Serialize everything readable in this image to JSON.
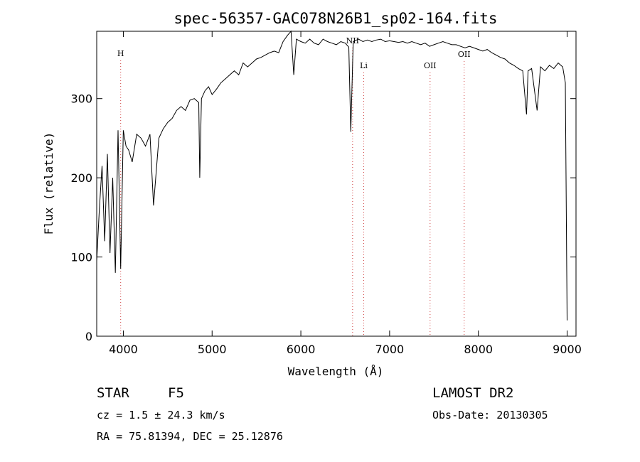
{
  "chart_data": {
    "type": "line",
    "title": "spec-56357-GAC078N26B1_sp02-164.fits",
    "xlabel": "Wavelength (Å)",
    "ylabel": "Flux (relative)",
    "xlim": [
      3700,
      9100
    ],
    "ylim": [
      0,
      385
    ],
    "x_ticks": [
      4000,
      5000,
      6000,
      7000,
      8000,
      9000
    ],
    "y_ticks": [
      0,
      100,
      200,
      300
    ],
    "grid": false,
    "series": [
      {
        "x": [
          3700,
          3730,
          3760,
          3790,
          3820,
          3850,
          3880,
          3910,
          3940,
          3970,
          4000,
          4030,
          4060,
          4100,
          4150,
          4200,
          4250,
          4300,
          4340,
          4400,
          4450,
          4500,
          4550,
          4600,
          4650,
          4700,
          4750,
          4800,
          4850,
          4861,
          4880,
          4920,
          4960,
          5000,
          5050,
          5100,
          5150,
          5200,
          5250,
          5300,
          5350,
          5400,
          5450,
          5500,
          5550,
          5600,
          5650,
          5700,
          5750,
          5800,
          5850,
          5890,
          5920,
          5950,
          6000,
          6050,
          6100,
          6150,
          6200,
          6250,
          6300,
          6350,
          6400,
          6450,
          6500,
          6540,
          6563,
          6590,
          6650,
          6700,
          6750,
          6800,
          6850,
          6900,
          6950,
          7000,
          7050,
          7100,
          7150,
          7200,
          7250,
          7300,
          7350,
          7400,
          7450,
          7500,
          7550,
          7600,
          7650,
          7700,
          7750,
          7800,
          7850,
          7900,
          7950,
          8000,
          8050,
          8100,
          8150,
          8200,
          8250,
          8300,
          8350,
          8400,
          8450,
          8500,
          8542,
          8560,
          8600,
          8662,
          8700,
          8750,
          8800,
          8850,
          8900,
          8950,
          8980,
          9000
        ],
        "values": [
          95,
          160,
          215,
          120,
          230,
          105,
          200,
          80,
          260,
          85,
          260,
          240,
          235,
          220,
          255,
          250,
          240,
          255,
          165,
          250,
          262,
          270,
          275,
          285,
          290,
          285,
          298,
          300,
          295,
          200,
          300,
          310,
          315,
          305,
          312,
          320,
          325,
          330,
          335,
          330,
          345,
          340,
          345,
          350,
          352,
          355,
          358,
          360,
          358,
          372,
          380,
          385,
          330,
          375,
          372,
          370,
          375,
          370,
          368,
          375,
          372,
          370,
          368,
          372,
          370,
          365,
          258,
          372,
          375,
          372,
          374,
          372,
          374,
          375,
          372,
          373,
          372,
          371,
          372,
          370,
          372,
          370,
          368,
          370,
          366,
          368,
          370,
          372,
          370,
          368,
          368,
          366,
          364,
          366,
          364,
          362,
          360,
          362,
          358,
          355,
          352,
          350,
          345,
          342,
          338,
          335,
          280,
          335,
          338,
          285,
          340,
          335,
          342,
          338,
          345,
          340,
          320,
          20
        ]
      }
    ],
    "spectral_lines": [
      {
        "label": "H",
        "x": 3970
      },
      {
        "label": "NII",
        "x": 6583
      },
      {
        "label": "Li",
        "x": 6708
      },
      {
        "label": "OII",
        "x": 7456
      },
      {
        "label": "OII",
        "x": 7840
      }
    ]
  },
  "info": {
    "class": "STAR",
    "subclass": "F5",
    "survey": "LAMOST DR2",
    "cz": "cz = 1.5 ± 24.3 km/s",
    "obs_date": "Obs-Date: 20130305",
    "coords": "RA =  75.81394, DEC =  25.12876"
  }
}
